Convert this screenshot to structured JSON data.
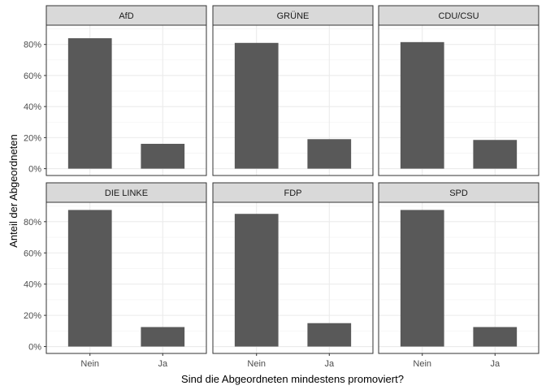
{
  "chart_data": {
    "type": "bar",
    "xlabel": "Sind die Abgeordneten mindestens promoviert?",
    "ylabel": "Anteil der Abgeordneten",
    "categories": [
      "Nein",
      "Ja"
    ],
    "y_ticks": [
      "0%",
      "20%",
      "40%",
      "60%",
      "80%"
    ],
    "y_tick_values": [
      0,
      0.2,
      0.4,
      0.6,
      0.8
    ],
    "ylim": [
      0,
      0.88
    ],
    "grid": true,
    "bar_color": "#595959",
    "strip_color": "#d9d9d9",
    "panels": [
      {
        "party": "AfD",
        "values": [
          0.84,
          0.16
        ]
      },
      {
        "party": "GRÜNE",
        "values": [
          0.81,
          0.19
        ]
      },
      {
        "party": "CDU/CSU",
        "values": [
          0.815,
          0.185
        ]
      },
      {
        "party": "DIE LINKE",
        "values": [
          0.875,
          0.125
        ]
      },
      {
        "party": "FDP",
        "values": [
          0.85,
          0.15
        ]
      },
      {
        "party": "SPD",
        "values": [
          0.875,
          0.125
        ]
      }
    ]
  }
}
